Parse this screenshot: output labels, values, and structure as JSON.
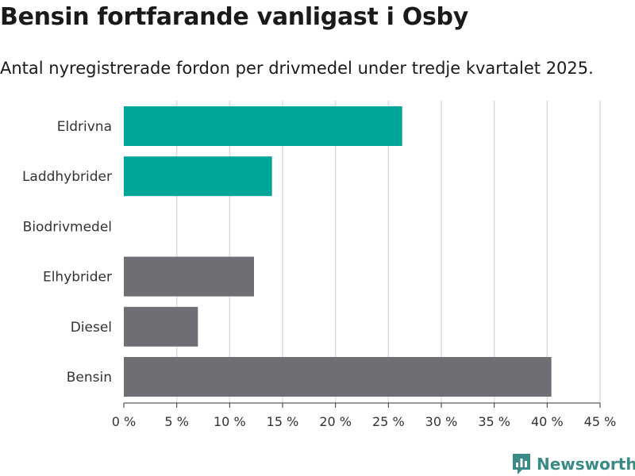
{
  "chart_data": {
    "type": "bar",
    "orientation": "horizontal",
    "title": "Bensin fortfarande vanligast i Osby",
    "subtitle": "Antal nyregistrerade fordon per drivmedel under tredje kvartalet 2025.",
    "categories": [
      "Eldrivna",
      "Laddhybrider",
      "Biodrivmedel",
      "Elhybrider",
      "Diesel",
      "Bensin"
    ],
    "values": [
      26.3,
      14.0,
      0,
      12.3,
      7.0,
      40.4
    ],
    "colors": [
      "#00a59a",
      "#00a59a",
      "#00a59a",
      "#6e6e74",
      "#6e6e74",
      "#6e6e74"
    ],
    "xlim": [
      0,
      45
    ],
    "xticks": [
      0,
      5,
      10,
      15,
      20,
      25,
      30,
      35,
      40,
      45
    ],
    "xtick_labels": [
      "0 %",
      "5 %",
      "10 %",
      "15 %",
      "20 %",
      "25 %",
      "30 %",
      "35 %",
      "40 %",
      "45 %"
    ],
    "xlabel": "",
    "ylabel": "",
    "grid": true
  },
  "brand": {
    "name": "Newsworthy",
    "color": "#3a8a86",
    "icon": "newsworthy-logo-icon"
  }
}
